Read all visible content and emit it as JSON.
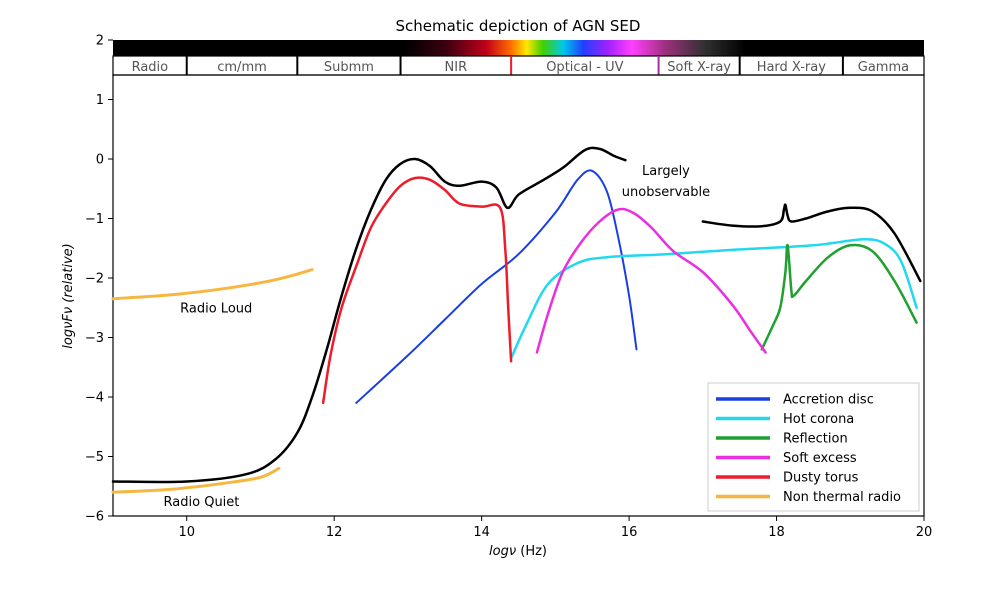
{
  "chart_data": {
    "type": "line",
    "title": "Schematic depiction of AGN SED",
    "xlabel_prefix": "logν",
    "xlabel_suffix": " (Hz)",
    "ylabel": "logνFν (relative)",
    "xlim": [
      9,
      20
    ],
    "ylim": [
      -6,
      2
    ],
    "xticks": [
      10,
      12,
      14,
      16,
      18,
      20
    ],
    "yticks": [
      2,
      1,
      0,
      -1,
      -2,
      -3,
      -4,
      -5,
      -6
    ],
    "grid": false,
    "legend_position": "lower-right",
    "bands": [
      {
        "label": "Radio",
        "from": 9.0,
        "to": 10.0
      },
      {
        "label": "cm/mm",
        "from": 10.0,
        "to": 11.5
      },
      {
        "label": "Submm",
        "from": 11.5,
        "to": 12.9
      },
      {
        "label": "NIR",
        "from": 12.9,
        "to": 14.4
      },
      {
        "label": "Optical - UV",
        "from": 14.4,
        "to": 16.4
      },
      {
        "label": "Soft X-ray",
        "from": 16.4,
        "to": 17.5
      },
      {
        "label": "Hard X-ray",
        "from": 17.5,
        "to": 18.9
      },
      {
        "label": "Gamma",
        "from": 18.9,
        "to": 20.0
      }
    ],
    "series": [
      {
        "name": "Accretion disc",
        "color": "#1a3fe0",
        "width": 2,
        "points": [
          [
            12.3,
            -4.1
          ],
          [
            13.0,
            -3.3
          ],
          [
            13.5,
            -2.7
          ],
          [
            14.0,
            -2.1
          ],
          [
            14.5,
            -1.6
          ],
          [
            15.0,
            -0.9
          ],
          [
            15.3,
            -0.35
          ],
          [
            15.5,
            -0.2
          ],
          [
            15.7,
            -0.55
          ],
          [
            15.85,
            -1.3
          ],
          [
            16.0,
            -2.3
          ],
          [
            16.1,
            -3.2
          ]
        ]
      },
      {
        "name": "Hot corona",
        "color": "#22d8ee",
        "width": 2.5,
        "points": [
          [
            14.4,
            -3.35
          ],
          [
            14.6,
            -2.8
          ],
          [
            14.9,
            -2.1
          ],
          [
            15.3,
            -1.75
          ],
          [
            15.7,
            -1.65
          ],
          [
            16.5,
            -1.6
          ],
          [
            17.5,
            -1.52
          ],
          [
            18.5,
            -1.45
          ],
          [
            19.2,
            -1.35
          ],
          [
            19.5,
            -1.45
          ],
          [
            19.7,
            -1.75
          ],
          [
            19.9,
            -2.5
          ]
        ]
      },
      {
        "name": "Reflection",
        "color": "#20a030",
        "width": 2.5,
        "points": [
          [
            17.8,
            -3.2
          ],
          [
            17.95,
            -2.8
          ],
          [
            18.05,
            -2.5
          ],
          [
            18.12,
            -1.9
          ],
          [
            18.15,
            -1.45
          ],
          [
            18.2,
            -2.2
          ],
          [
            18.23,
            -2.3
          ],
          [
            18.4,
            -2.05
          ],
          [
            18.7,
            -1.65
          ],
          [
            19.0,
            -1.45
          ],
          [
            19.3,
            -1.55
          ],
          [
            19.6,
            -2.05
          ],
          [
            19.9,
            -2.75
          ]
        ]
      },
      {
        "name": "Soft excess",
        "color": "#ea2ee0",
        "width": 2.5,
        "points": [
          [
            14.75,
            -3.25
          ],
          [
            14.9,
            -2.6
          ],
          [
            15.1,
            -1.9
          ],
          [
            15.35,
            -1.4
          ],
          [
            15.6,
            -1.05
          ],
          [
            15.85,
            -0.85
          ],
          [
            16.05,
            -0.9
          ],
          [
            16.3,
            -1.15
          ],
          [
            16.6,
            -1.55
          ],
          [
            17.0,
            -1.9
          ],
          [
            17.4,
            -2.45
          ],
          [
            17.65,
            -2.9
          ],
          [
            17.85,
            -3.25
          ]
        ]
      },
      {
        "name": "Dusty torus",
        "color": "#ee1c2a",
        "width": 2.5,
        "points": [
          [
            11.85,
            -4.1
          ],
          [
            11.95,
            -3.3
          ],
          [
            12.1,
            -2.5
          ],
          [
            12.3,
            -1.8
          ],
          [
            12.5,
            -1.15
          ],
          [
            12.7,
            -0.75
          ],
          [
            12.9,
            -0.45
          ],
          [
            13.1,
            -0.32
          ],
          [
            13.3,
            -0.35
          ],
          [
            13.5,
            -0.52
          ],
          [
            13.7,
            -0.75
          ],
          [
            14.0,
            -0.8
          ],
          [
            14.25,
            -0.82
          ],
          [
            14.32,
            -1.5
          ],
          [
            14.36,
            -2.5
          ],
          [
            14.4,
            -3.4
          ]
        ]
      },
      {
        "name": "Non thermal radio",
        "color": "#f5b740",
        "width": 3,
        "segments": [
          [
            [
              9.0,
              -2.35
            ],
            [
              9.8,
              -2.28
            ],
            [
              10.5,
              -2.18
            ],
            [
              11.2,
              -2.03
            ],
            [
              11.7,
              -1.86
            ]
          ],
          [
            [
              9.0,
              -5.6
            ],
            [
              9.8,
              -5.55
            ],
            [
              10.5,
              -5.45
            ],
            [
              11.0,
              -5.35
            ],
            [
              11.25,
              -5.2
            ]
          ]
        ]
      },
      {
        "name": "",
        "color": "#000000",
        "width": 2.5,
        "in_legend": false,
        "segments": [
          [
            [
              9.0,
              -5.42
            ],
            [
              10.0,
              -5.42
            ],
            [
              10.8,
              -5.3
            ],
            [
              11.2,
              -5.05
            ],
            [
              11.5,
              -4.6
            ],
            [
              11.7,
              -4.0
            ],
            [
              11.9,
              -3.2
            ],
            [
              12.1,
              -2.3
            ],
            [
              12.3,
              -1.5
            ],
            [
              12.5,
              -0.85
            ],
            [
              12.7,
              -0.35
            ],
            [
              12.9,
              -0.08
            ],
            [
              13.1,
              0.0
            ],
            [
              13.3,
              -0.12
            ],
            [
              13.5,
              -0.38
            ],
            [
              13.7,
              -0.45
            ],
            [
              14.0,
              -0.38
            ],
            [
              14.2,
              -0.48
            ],
            [
              14.35,
              -0.82
            ],
            [
              14.5,
              -0.6
            ],
            [
              14.8,
              -0.38
            ],
            [
              15.1,
              -0.15
            ],
            [
              15.4,
              0.15
            ],
            [
              15.6,
              0.17
            ],
            [
              15.8,
              0.05
            ],
            [
              15.95,
              -0.02
            ]
          ],
          [
            [
              17.0,
              -1.05
            ],
            [
              17.4,
              -1.12
            ],
            [
              17.8,
              -1.13
            ],
            [
              18.05,
              -1.05
            ],
            [
              18.1,
              -0.85
            ],
            [
              18.12,
              -0.77
            ],
            [
              18.15,
              -0.95
            ],
            [
              18.2,
              -1.05
            ],
            [
              18.4,
              -1.0
            ],
            [
              18.7,
              -0.88
            ],
            [
              19.0,
              -0.82
            ],
            [
              19.3,
              -0.88
            ],
            [
              19.6,
              -1.25
            ],
            [
              19.95,
              -2.05
            ]
          ]
        ]
      }
    ],
    "annotations": [
      {
        "text": "Radio Loud",
        "x": 10.4,
        "y": -2.58
      },
      {
        "text": "Radio Quiet",
        "x": 10.2,
        "y": -5.83
      },
      {
        "text": "Largely",
        "x": 16.5,
        "y": -0.27
      },
      {
        "text": "unobservable",
        "x": 16.5,
        "y": -0.62
      }
    ]
  }
}
